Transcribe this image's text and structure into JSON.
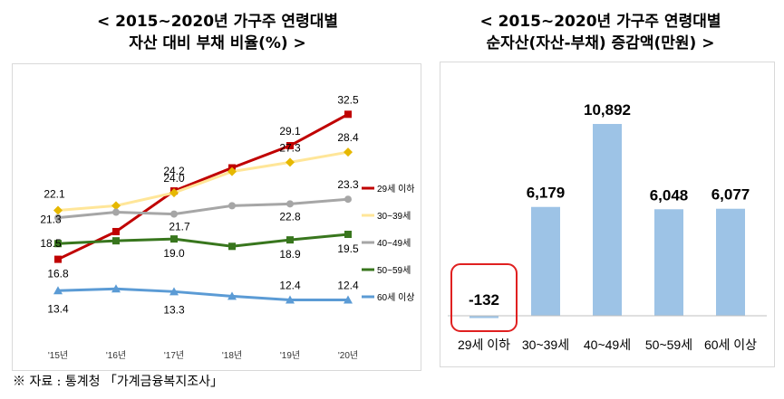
{
  "left_title": {
    "line1": "< 2015~2020년 가구주 연령대별",
    "line2": "자산 대비 부채 비율(%) >"
  },
  "right_title": {
    "line1": "< 2015~2020년 가구주 연령대별",
    "line2": "순자산(자산-부채) 증감액(만원) >"
  },
  "footnote": "※ 자료 : 통계청 「가계금융복지조사」",
  "chart_data": [
    {
      "type": "line",
      "title": "2015~2020년 가구주 연령대별 자산 대비 부채 비율(%)",
      "x": [
        "'15년",
        "'16년",
        "'17년",
        "'18년",
        "'19년",
        "'20년"
      ],
      "ylim": [
        10,
        34
      ],
      "grid": false,
      "legend": "right",
      "series": [
        {
          "name": "29세 이하",
          "color": "#c00000",
          "marker": "square",
          "values": [
            16.8,
            19.8,
            24.2,
            26.7,
            29.1,
            32.5
          ],
          "labels": [
            "16.8",
            null,
            "24.2",
            null,
            "29.1",
            "32.5"
          ]
        },
        {
          "name": "30~39세",
          "color": "#ffe699",
          "marker": "diamond",
          "values": [
            22.1,
            22.6,
            24.0,
            26.3,
            27.3,
            28.4
          ],
          "labels": [
            "22.1",
            null,
            "24.0",
            null,
            "27.3",
            "28.4"
          ]
        },
        {
          "name": "40~49세",
          "color": "#a6a6a6",
          "marker": "circle",
          "values": [
            21.3,
            21.9,
            21.7,
            22.6,
            22.8,
            23.3
          ],
          "labels": [
            "21.3",
            null,
            "21.7",
            null,
            "22.8",
            "23.3"
          ]
        },
        {
          "name": "50~59세",
          "color": "#38761d",
          "marker": "square",
          "values": [
            18.5,
            18.8,
            19.0,
            18.2,
            18.9,
            19.5
          ],
          "labels": [
            "18.5",
            null,
            "19.0",
            null,
            "18.9",
            "19.5"
          ]
        },
        {
          "name": "60세 이상",
          "color": "#5b9bd5",
          "marker": "triangle",
          "values": [
            13.4,
            13.6,
            13.3,
            12.8,
            12.4,
            12.4
          ],
          "labels": [
            "13.4",
            null,
            "13.3",
            null,
            "12.4",
            "12.4"
          ]
        }
      ]
    },
    {
      "type": "bar",
      "title": "2015~2020년 가구주 연령대별 순자산(자산-부채) 증감액(만원)",
      "categories": [
        "29세 이하",
        "30~39세",
        "40~49세",
        "50~59세",
        "60세 이상"
      ],
      "values": [
        -132,
        6179,
        10892,
        6048,
        6077
      ],
      "value_labels": [
        "-132",
        "6,179",
        "10,892",
        "6,048",
        "6,077"
      ],
      "ylim": [
        -500,
        12000
      ],
      "color": "#9dc3e6",
      "highlight": {
        "category": "29세 이하",
        "color": "#e02020"
      }
    }
  ]
}
